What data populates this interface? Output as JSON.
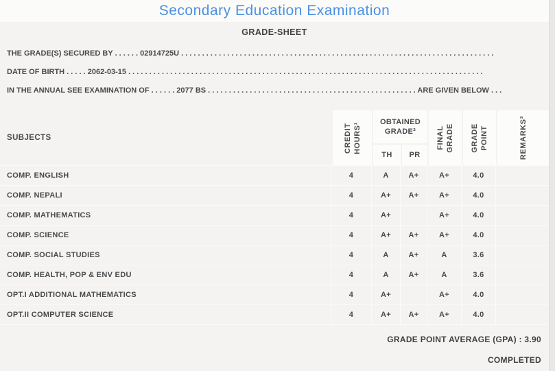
{
  "header": {
    "title": "Secondary Education Examination",
    "subtitle": "GRADE-SHEET"
  },
  "info": {
    "secured_by": "THE GRADE(S) SECURED BY . . . . . . 02914725U . . . . . . . . . . . . . . . . . . . . . . . . . . . . . . . . . . . . . . . . . . . . . . . . . . . . . . . . . . . . . . . . . . . . . . . . . . .",
    "date_of_birth": "DATE OF BIRTH . . . . . 2062-03-15 . . . . . . . . . . . . . . . . . . . . . . . . . . . . . . . . . . . . . . . . . . . . . . . . . . . . . . . . . . . . . . . . . . . . . . . . . . . . . . . . . . . . .",
    "examination": "IN THE ANNUAL SEE EXAMINATION OF . . . . . . 2077 BS . . . . . . . . . . . . . . . . . . . . . . . . . . . . . . . . . . . . . . . . . . . . . . . . . . ARE GIVEN BELOW . . ."
  },
  "table": {
    "headers": {
      "subjects": "SUBJECTS",
      "credit_hours": {
        "line1": "CREDIT",
        "line2": "HOURS¹"
      },
      "obtained_grade": {
        "line1": "OBTAINED",
        "line2": "GRADE²"
      },
      "th": "TH",
      "pr": "PR",
      "final_grade": {
        "line1": "FINAL",
        "line2": "GRADE"
      },
      "grade_point": {
        "line1": "GRADE",
        "line2": "POINT"
      },
      "remarks": "REMARKS³"
    },
    "rows": [
      {
        "subject": "COMP. ENGLISH",
        "credit_hours": "4",
        "th": "A",
        "pr": "A+",
        "final_grade": "A+",
        "grade_point": "4.0",
        "remarks": ""
      },
      {
        "subject": "COMP. NEPALI",
        "credit_hours": "4",
        "th": "A+",
        "pr": "A+",
        "final_grade": "A+",
        "grade_point": "4.0",
        "remarks": ""
      },
      {
        "subject": "COMP. MATHEMATICS",
        "credit_hours": "4",
        "th": "A+",
        "pr": "",
        "final_grade": "A+",
        "grade_point": "4.0",
        "remarks": ""
      },
      {
        "subject": "COMP. SCIENCE",
        "credit_hours": "4",
        "th": "A+",
        "pr": "A+",
        "final_grade": "A+",
        "grade_point": "4.0",
        "remarks": ""
      },
      {
        "subject": "COMP. SOCIAL STUDIES",
        "credit_hours": "4",
        "th": "A",
        "pr": "A+",
        "final_grade": "A",
        "grade_point": "3.6",
        "remarks": ""
      },
      {
        "subject": "COMP. HEALTH, POP & ENV EDU",
        "credit_hours": "4",
        "th": "A",
        "pr": "A+",
        "final_grade": "A",
        "grade_point": "3.6",
        "remarks": ""
      },
      {
        "subject": "OPT.I ADDITIONAL MATHEMATICS",
        "credit_hours": "4",
        "th": "A+",
        "pr": "",
        "final_grade": "A+",
        "grade_point": "4.0",
        "remarks": ""
      },
      {
        "subject": "OPT.II COMPUTER SCIENCE",
        "credit_hours": "4",
        "th": "A+",
        "pr": "A+",
        "final_grade": "A+",
        "grade_point": "4.0",
        "remarks": ""
      }
    ]
  },
  "summary": {
    "gpa": "GRADE POINT AVERAGE (GPA) : 3.90",
    "status": "COMPLETED"
  },
  "colors": {
    "title_blue": "#4a90e2",
    "text": "#47494b",
    "page_bg": "#f4f3f1",
    "header_cell_bg": "#fcfcfb"
  }
}
